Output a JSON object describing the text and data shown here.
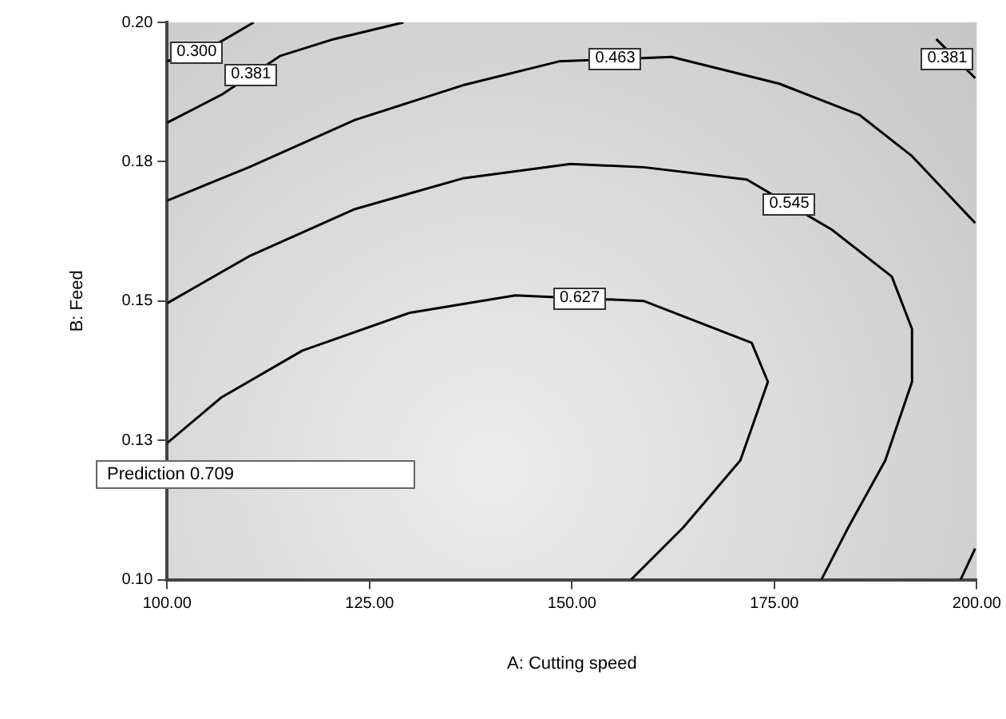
{
  "chart_data": {
    "type": "line",
    "xlabel": "A: Cutting speed",
    "ylabel": "B: Feed",
    "xlim": [
      100,
      200
    ],
    "ylim": [
      0.1,
      0.2
    ],
    "xticks": [
      {
        "value": 100,
        "label": "100.00"
      },
      {
        "value": 125,
        "label": "125.00"
      },
      {
        "value": 150,
        "label": "150.00"
      },
      {
        "value": 175,
        "label": "175.00"
      },
      {
        "value": 200,
        "label": "200.00"
      }
    ],
    "yticks": [
      {
        "value": 0.1,
        "label": "0.10"
      },
      {
        "value": 0.125,
        "label": "0.13"
      },
      {
        "value": 0.15,
        "label": "0.15"
      },
      {
        "value": 0.175,
        "label": "0.18"
      },
      {
        "value": 0.2,
        "label": "0.20"
      }
    ],
    "grid": false,
    "legend": false,
    "line_style": "solid",
    "annotations": [
      "Prediction 0.709"
    ],
    "series": [
      {
        "name": "0.300",
        "color": "#000000",
        "x": [
          100,
          106,
          110.7
        ],
        "values": [
          0.193,
          0.196,
          0.2
        ]
      },
      {
        "name": "0.381",
        "color": "#000000",
        "x": [
          100,
          106.7,
          114,
          120.6,
          129.2
        ],
        "values": [
          0.182,
          0.187,
          0.194,
          0.197,
          0.2
        ]
      },
      {
        "name": "0.463",
        "color": "#000000",
        "x": [
          100,
          110.1,
          123.2,
          136.5,
          148.4,
          162.3,
          175.6,
          185.5,
          192,
          199.8
        ],
        "values": [
          0.168,
          0.174,
          0.1825,
          0.1887,
          0.193,
          0.1938,
          0.189,
          0.1834,
          0.176,
          0.164
        ]
      },
      {
        "name": "0.545",
        "color": "#000000",
        "x": [
          100,
          110.1,
          123.2,
          136.5,
          149.8,
          158.9,
          171.6,
          182.1,
          189.5,
          192,
          192,
          188.7,
          184.1,
          180.8
        ],
        "values": [
          0.1496,
          0.158,
          0.1665,
          0.172,
          0.1746,
          0.174,
          0.1718,
          0.1628,
          0.1544,
          0.145,
          0.1355,
          0.1214,
          0.1093,
          0.1
        ]
      },
      {
        "name": "0.627",
        "color": "#000000",
        "x": [
          100,
          106.7,
          116.7,
          130,
          143,
          158.9,
          172.2,
          174.2,
          170.8,
          163.7,
          157.3
        ],
        "values": [
          0.1245,
          0.1327,
          0.1411,
          0.1479,
          0.151,
          0.15,
          0.1425,
          0.1355,
          0.1214,
          0.1093,
          0.1
        ]
      },
      {
        "name": "0.381",
        "color": "#000000",
        "x": [
          195,
          199.8
        ],
        "values": [
          0.197,
          0.19
        ]
      },
      {
        "color": "#000000",
        "x": [
          198,
          199.8
        ],
        "values": [
          0.1,
          0.1056
        ]
      }
    ]
  }
}
